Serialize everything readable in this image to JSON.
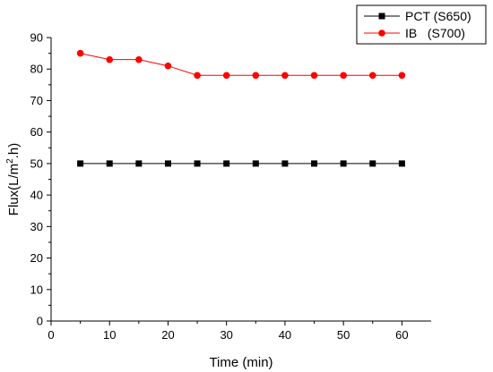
{
  "chart_data": {
    "type": "line",
    "title": "",
    "xlabel": "Time (min)",
    "ylabel_parts": {
      "prefix": "Flux(L/m",
      "sup": "2",
      "suffix": ".h)"
    },
    "xlim": [
      0,
      65
    ],
    "ylim": [
      0,
      90
    ],
    "xticks": [
      0,
      10,
      20,
      30,
      40,
      50,
      60
    ],
    "yticks": [
      0,
      10,
      20,
      30,
      40,
      50,
      60,
      70,
      80,
      90
    ],
    "grid": false,
    "legend_position": "top-right",
    "x": [
      5,
      10,
      15,
      20,
      25,
      30,
      35,
      40,
      45,
      50,
      55,
      60
    ],
    "series": [
      {
        "name": "PCT (S650)",
        "color": "#000000",
        "marker": "square",
        "values": [
          50,
          50,
          50,
          50,
          50,
          50,
          50,
          50,
          50,
          50,
          50,
          50
        ]
      },
      {
        "name": "IB   (S700)",
        "color": "#ff0000",
        "marker": "circle",
        "values": [
          85,
          83,
          83,
          81,
          78,
          78,
          78,
          78,
          78,
          78,
          78,
          78
        ]
      }
    ]
  }
}
